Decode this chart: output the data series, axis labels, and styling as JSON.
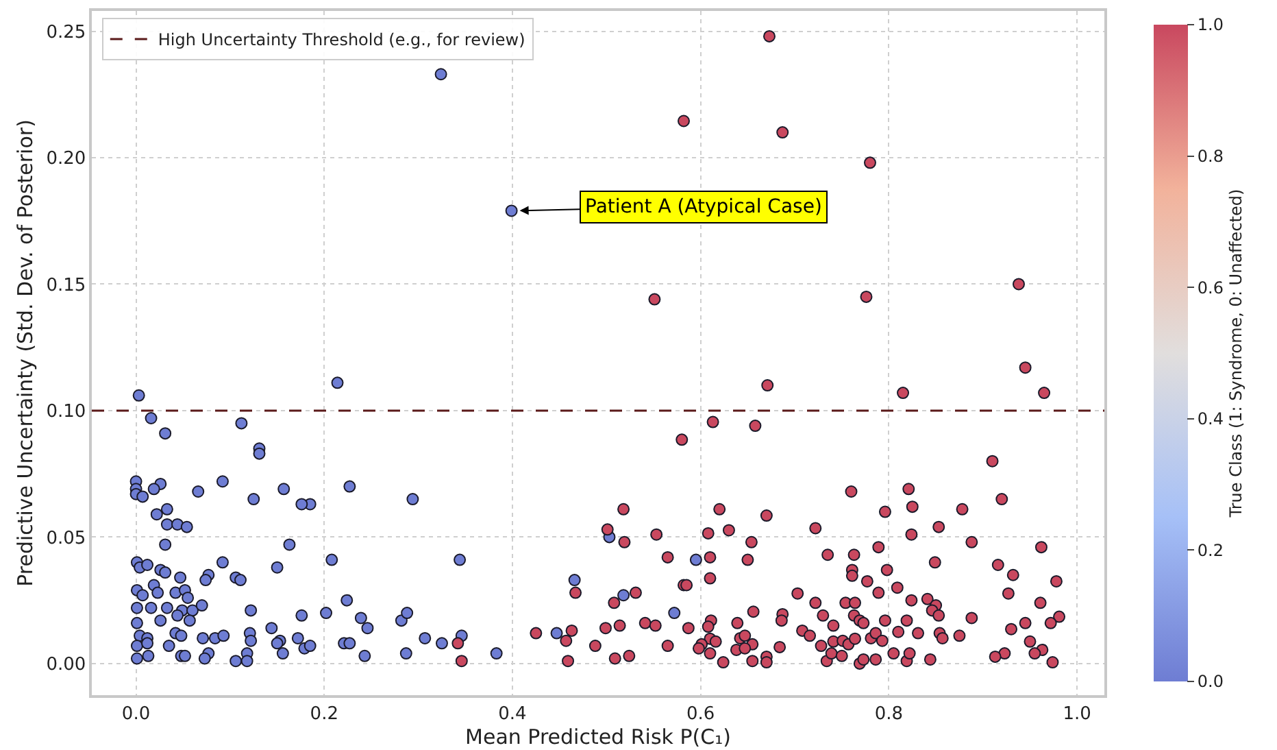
{
  "chart_data": {
    "type": "scatter",
    "xlabel": "Mean Predicted Risk P(C₁)",
    "ylabel": "Predictive Uncertainty (Std. Dev. of Posterior)",
    "clabel": "True Class (1: Syndrome, 0: Unaffected)",
    "xlim": [
      -0.047,
      1.029
    ],
    "ylim": [
      -0.0125,
      0.258
    ],
    "xticks": [
      {
        "value": 0,
        "label": "0.0"
      },
      {
        "value": 0.2,
        "label": "0.2"
      },
      {
        "value": 0.4,
        "label": "0.4"
      },
      {
        "value": 0.6,
        "label": "0.6"
      },
      {
        "value": 0.8,
        "label": "0.8"
      },
      {
        "value": 1,
        "label": "1.0"
      }
    ],
    "yticks": [
      {
        "value": 0,
        "label": "0.00"
      },
      {
        "value": 0.05,
        "label": "0.05"
      },
      {
        "value": 0.1,
        "label": "0.10"
      },
      {
        "value": 0.15,
        "label": "0.15"
      },
      {
        "value": 0.2,
        "label": "0.20"
      },
      {
        "value": 0.25,
        "label": "0.25"
      }
    ],
    "clim": [
      0,
      1
    ],
    "cticks": [
      {
        "value": 0,
        "label": "0.0"
      },
      {
        "value": 0.2,
        "label": "0.2"
      },
      {
        "value": 0.4,
        "label": "0.4"
      },
      {
        "value": 0.6,
        "label": "0.6"
      },
      {
        "value": 0.8,
        "label": "0.8"
      },
      {
        "value": 1,
        "label": "1.0"
      }
    ],
    "grid": true,
    "legend": "top left",
    "marker": "circle",
    "ref_lines": [
      {
        "axis": "y",
        "value": 0.1,
        "label": "High Uncertainty Threshold (e.g., for review)",
        "color": "#5a1a1a",
        "line_style": "dashed"
      }
    ],
    "annotations": [
      {
        "text": "Patient A (Atypical Case)",
        "x": 0.399,
        "y": 0.179
      }
    ],
    "series": [
      {
        "x": [
          0.324,
          0.399,
          0.214,
          0.003,
          0.016,
          0.112,
          0.031,
          0.131,
          0.131,
          0,
          0,
          0,
          0.026,
          0.007,
          0.019,
          0.066,
          0.092,
          0.125,
          0.157,
          0.185,
          0.227,
          0.294,
          0.022,
          0.033,
          0.033,
          0.044,
          0.054,
          0.176,
          0.031,
          0.163,
          0.208,
          0.344,
          0.595,
          0.466,
          0.518,
          0.503,
          0.572,
          0.447,
          0.239,
          0.246,
          0.282,
          0.288,
          0.307,
          0.325,
          0.346,
          0.383,
          0.287,
          0.243,
          0.224,
          0.001,
          0.004,
          0.012,
          0.026,
          0.031,
          0.047,
          0.077,
          0.074,
          0.106,
          0.111,
          0.092,
          0.15,
          0.001,
          0.019,
          0.023,
          0.042,
          0.052,
          0.055,
          0.007,
          0.001,
          0.016,
          0.033,
          0.049,
          0.06,
          0.07,
          0.044,
          0.057,
          0.026,
          0.122,
          0.176,
          0.202,
          0.001,
          0.004,
          0.012,
          0.001,
          0.012,
          0.001,
          0.013,
          0.042,
          0.048,
          0.035,
          0.048,
          0.052,
          0.071,
          0.084,
          0.093,
          0.077,
          0.073,
          0.121,
          0.122,
          0.118,
          0.106,
          0.118,
          0.144,
          0.153,
          0.15,
          0.156,
          0.172,
          0.179,
          0.185,
          0.221,
          0.227
        ],
        "values": [
          0.233,
          0.179,
          0.111,
          0.106,
          0.097,
          0.095,
          0.091,
          0.085,
          0.083,
          0.072,
          0.069,
          0.067,
          0.071,
          0.066,
          0.069,
          0.068,
          0.072,
          0.065,
          0.069,
          0.063,
          0.07,
          0.065,
          0.059,
          0.061,
          0.055,
          0.055,
          0.054,
          0.063,
          0.047,
          0.047,
          0.041,
          0.041,
          0.041,
          0.033,
          0.027,
          0.05,
          0.02,
          0.012,
          0.018,
          0.014,
          0.017,
          0.02,
          0.01,
          0.008,
          0.011,
          0.004,
          0.004,
          0.003,
          0.025,
          0.04,
          0.038,
          0.039,
          0.037,
          0.036,
          0.034,
          0.035,
          0.033,
          0.034,
          0.033,
          0.04,
          0.038,
          0.029,
          0.031,
          0.028,
          0.028,
          0.029,
          0.026,
          0.027,
          0.022,
          0.022,
          0.022,
          0.021,
          0.021,
          0.023,
          0.019,
          0.017,
          0.017,
          0.021,
          0.019,
          0.02,
          0.016,
          0.011,
          0.01,
          0.007,
          0.008,
          0.002,
          0.003,
          0.012,
          0.011,
          0.007,
          0.003,
          0.003,
          0.01,
          0.01,
          0.011,
          0.004,
          0.002,
          0.012,
          0.009,
          0.004,
          0.001,
          0.001,
          0.014,
          0.009,
          0.008,
          0.004,
          0.01,
          0.006,
          0.007,
          0.008,
          0.008
        ],
        "cvalues": [
          0,
          0,
          0,
          0,
          0,
          0,
          0,
          0,
          0,
          0,
          0,
          0,
          0,
          0,
          0,
          0,
          0,
          0,
          0,
          0,
          0,
          0,
          0,
          0,
          0,
          0,
          0,
          0,
          0,
          0,
          0,
          0,
          0,
          0,
          0,
          0,
          0,
          0,
          0,
          0,
          0,
          0,
          0,
          0,
          0,
          0,
          0,
          0,
          0,
          0,
          0,
          0,
          0,
          0,
          0,
          0,
          0,
          0,
          0,
          0,
          0,
          0,
          0,
          0,
          0,
          0,
          0,
          0,
          0,
          0,
          0,
          0,
          0,
          0,
          0,
          0,
          0,
          0,
          0,
          0,
          0,
          0,
          0,
          0,
          0,
          0,
          0,
          0,
          0,
          0,
          0,
          0,
          0,
          0,
          0,
          0,
          0,
          0,
          0,
          0,
          0,
          0,
          0,
          0,
          0,
          0,
          0,
          0,
          0,
          0,
          0
        ]
      },
      {
        "x": [
          0.673,
          0.582,
          0.687,
          0.78,
          0.551,
          0.776,
          0.938,
          0.945,
          0.671,
          0.815,
          0.965,
          0.58,
          0.518,
          0.501,
          0.519,
          0.553,
          0.565,
          0.582,
          0.467,
          0.508,
          0.531,
          0.541,
          0.552,
          0.514,
          0.499,
          0.463,
          0.425,
          0.457,
          0.488,
          0.565,
          0.509,
          0.524,
          0.459,
          0.342,
          0.346,
          0.613,
          0.658,
          0.76,
          0.796,
          0.62,
          0.67,
          0.722,
          0.608,
          0.63,
          0.654,
          0.65,
          0.61,
          0.61,
          0.585,
          0.735,
          0.763,
          0.761,
          0.761,
          0.777,
          0.789,
          0.798,
          0.789,
          0.703,
          0.722,
          0.754,
          0.764,
          0.73,
          0.763,
          0.741,
          0.656,
          0.687,
          0.686,
          0.639,
          0.611,
          0.608,
          0.587,
          0.769,
          0.773,
          0.796,
          0.708,
          0.716,
          0.642,
          0.647,
          0.61,
          0.616,
          0.655,
          0.601,
          0.598,
          0.638,
          0.647,
          0.684,
          0.61,
          0.624,
          0.655,
          0.67,
          0.67,
          0.728,
          0.741,
          0.751,
          0.757,
          0.764,
          0.781,
          0.786,
          0.793,
          0.734,
          0.739,
          0.75,
          0.769,
          0.773,
          0.786,
          0.91,
          0.821,
          0.92,
          0.825,
          0.878,
          0.853,
          0.824,
          0.888,
          0.962,
          0.849,
          0.916,
          0.932,
          0.978,
          0.809,
          0.927,
          0.841,
          0.824,
          0.85,
          0.846,
          0.853,
          0.961,
          0.981,
          0.972,
          0.945,
          0.93,
          0.888,
          0.819,
          0.81,
          0.831,
          0.854,
          0.857,
          0.875,
          0.95,
          0.963,
          0.955,
          0.974,
          0.923,
          0.913,
          0.844,
          0.819,
          0.822,
          0.805
        ],
        "values": [
          0.248,
          0.2145,
          0.21,
          0.198,
          0.144,
          0.145,
          0.15,
          0.117,
          0.11,
          0.107,
          0.107,
          0.0885,
          0.061,
          0.053,
          0.048,
          0.051,
          0.042,
          0.031,
          0.028,
          0.024,
          0.028,
          0.016,
          0.015,
          0.015,
          0.014,
          0.013,
          0.012,
          0.009,
          0.007,
          0.007,
          0.002,
          0.003,
          0.001,
          0.008,
          0.001,
          0.0955,
          0.094,
          0.068,
          0.06,
          0.061,
          0.0585,
          0.0535,
          0.0515,
          0.0527,
          0.048,
          0.041,
          0.042,
          0.0337,
          0.031,
          0.043,
          0.043,
          0.037,
          0.0347,
          0.0325,
          0.046,
          0.037,
          0.028,
          0.0277,
          0.024,
          0.024,
          0.024,
          0.019,
          0.019,
          0.015,
          0.0205,
          0.0195,
          0.017,
          0.016,
          0.017,
          0.0146,
          0.014,
          0.017,
          0.016,
          0.017,
          0.013,
          0.011,
          0.01,
          0.011,
          0.0098,
          0.0087,
          0.0076,
          0.0076,
          0.006,
          0.0054,
          0.006,
          0.0065,
          0.004,
          0.0005,
          0.001,
          0.0027,
          0.0005,
          0.007,
          0.0087,
          0.009,
          0.0076,
          0.0098,
          0.01,
          0.012,
          0.009,
          0.001,
          0.004,
          0.003,
          0,
          0.0016,
          0.0016,
          0.08,
          0.069,
          0.065,
          0.062,
          0.061,
          0.054,
          0.051,
          0.048,
          0.046,
          0.04,
          0.039,
          0.035,
          0.0325,
          0.03,
          0.0277,
          0.0255,
          0.025,
          0.023,
          0.021,
          0.019,
          0.024,
          0.0185,
          0.016,
          0.016,
          0.0136,
          0.018,
          0.017,
          0.0125,
          0.012,
          0.012,
          0.01,
          0.011,
          0.0087,
          0.0054,
          0.004,
          0.0005,
          0.004,
          0.0027,
          0.0016,
          0.001,
          0.004,
          0.004
        ],
        "cvalues": [
          1,
          1,
          1,
          1,
          1,
          1,
          1,
          1,
          1,
          1,
          1,
          1,
          1,
          1,
          1,
          1,
          1,
          1,
          1,
          1,
          1,
          1,
          1,
          1,
          1,
          1,
          1,
          1,
          1,
          1,
          1,
          1,
          1,
          1,
          1,
          1,
          1,
          1,
          1,
          1,
          1,
          1,
          1,
          1,
          1,
          1,
          1,
          1,
          1,
          1,
          1,
          1,
          1,
          1,
          1,
          1,
          1,
          1,
          1,
          1,
          1,
          1,
          1,
          1,
          1,
          1,
          1,
          1,
          1,
          1,
          1,
          1,
          1,
          1,
          1,
          1,
          1,
          1,
          1,
          1,
          1,
          1,
          1,
          1,
          1,
          1,
          1,
          1,
          1,
          1,
          1,
          1,
          1,
          1,
          1,
          1,
          1,
          1,
          1,
          1,
          1,
          1,
          1,
          1,
          1,
          1,
          1,
          1,
          1,
          1,
          1,
          1,
          1,
          1,
          1,
          1,
          1,
          1,
          1,
          1,
          1,
          1,
          1,
          1,
          1,
          1,
          1,
          1,
          1,
          1,
          1,
          1,
          1,
          1,
          1,
          1,
          1,
          1,
          1,
          1,
          1,
          1,
          1,
          1,
          1,
          1,
          1
        ]
      }
    ]
  }
}
